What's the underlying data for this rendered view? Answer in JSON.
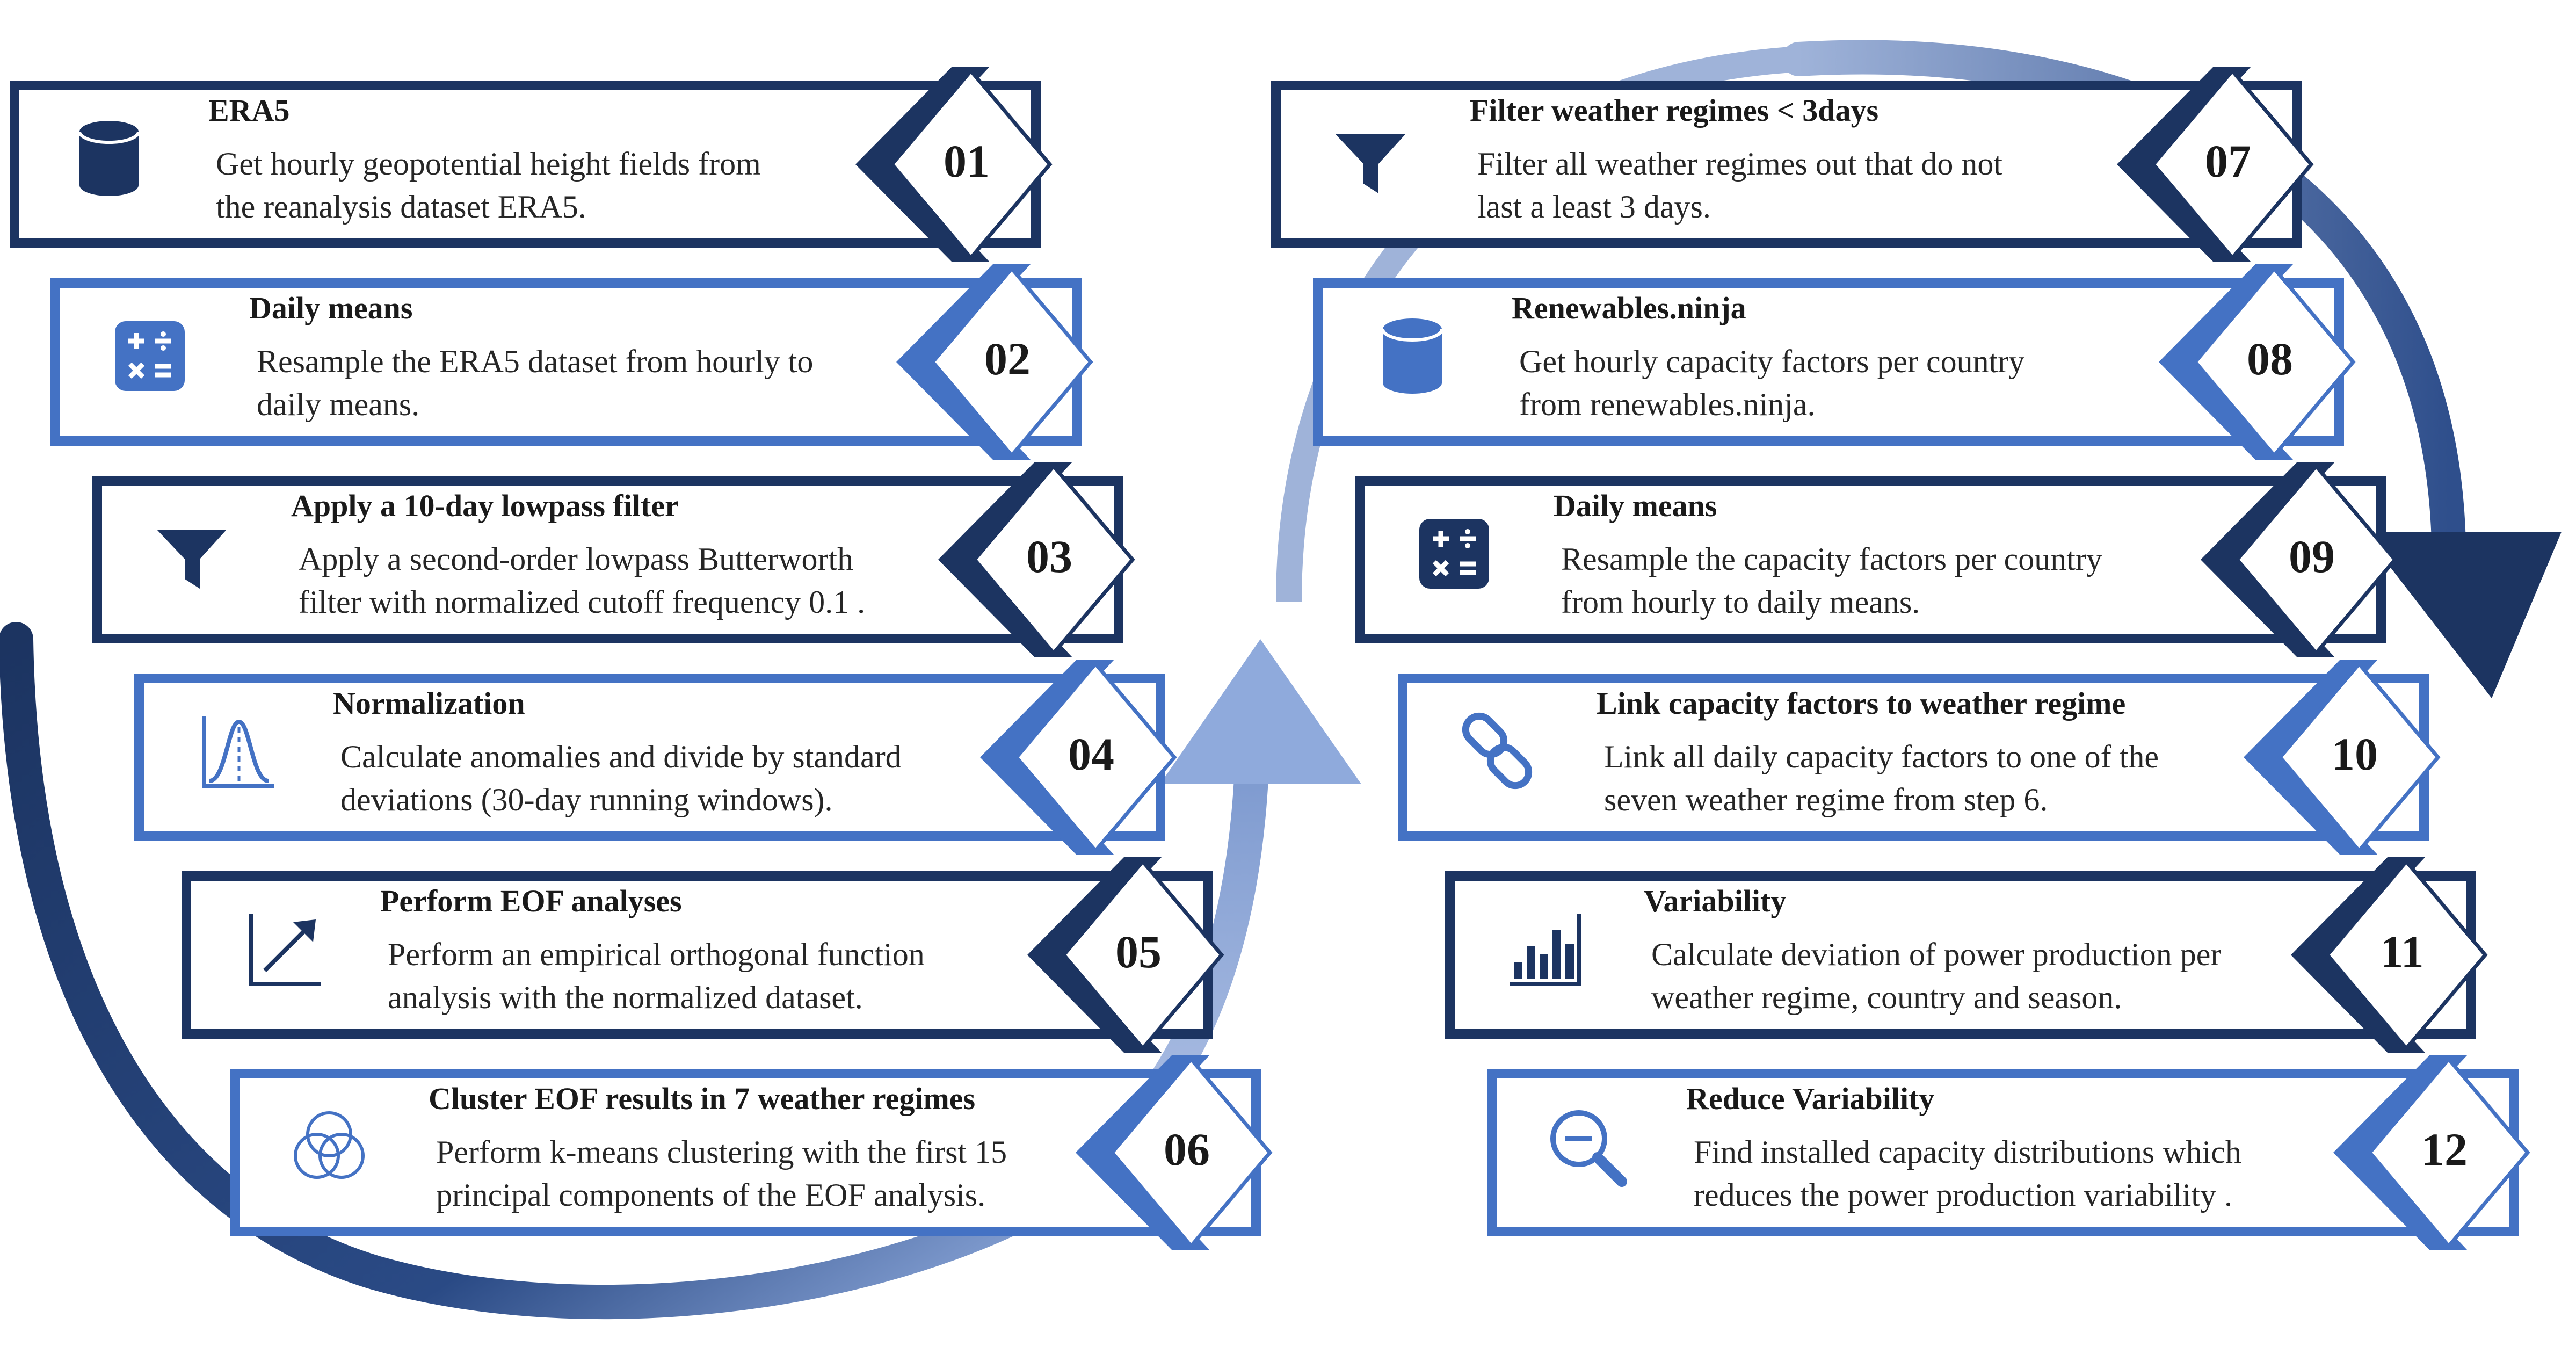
{
  "colors": {
    "dark": "#1c3461",
    "light": "#4472c4",
    "arrow_light": "#8faadc"
  },
  "steps": [
    {
      "num": "01",
      "title": "ERA5",
      "lines": [
        "Get hourly geopotential height fields from",
        "the reanalysis dataset ERA5."
      ],
      "icon": "database-icon",
      "tone": "dark"
    },
    {
      "num": "02",
      "title": "Daily means",
      "lines": [
        "Resample the ERA5 dataset from hourly to",
        "daily means."
      ],
      "icon": "calculator-icon",
      "tone": "light"
    },
    {
      "num": "03",
      "title": "Apply a 10-day lowpass filter",
      "lines": [
        "Apply a second-order lowpass Butterworth",
        "filter with normalized cutoff frequency 0.1 ."
      ],
      "icon": "funnel-icon",
      "tone": "dark"
    },
    {
      "num": "04",
      "title": "Normalization",
      "lines": [
        "Calculate anomalies and divide by standard",
        "deviations (30-day running windows)."
      ],
      "icon": "bell-curve-icon",
      "tone": "light"
    },
    {
      "num": "05",
      "title": "Perform EOF analyses",
      "lines": [
        "Perform an empirical orthogonal function",
        "analysis with the normalized dataset."
      ],
      "icon": "trend-arrow-icon",
      "tone": "dark"
    },
    {
      "num": "06",
      "title": "Cluster EOF results in 7 weather regimes",
      "lines": [
        "Perform k-means clustering with the first 15",
        "principal components of the EOF analysis."
      ],
      "icon": "venn-circles-icon",
      "tone": "light"
    },
    {
      "num": "07",
      "title": "Filter weather regimes <  3days",
      "lines": [
        "Filter all weather regimes out that do not",
        "last a least 3 days."
      ],
      "icon": "funnel-icon",
      "tone": "dark"
    },
    {
      "num": "08",
      "title": "Renewables.ninja",
      "lines": [
        "Get hourly capacity factors per country",
        "from renewables.ninja."
      ],
      "icon": "database-icon",
      "tone": "light"
    },
    {
      "num": "09",
      "title": "Daily means",
      "lines": [
        "Resample the capacity factors per country",
        "from hourly to daily means."
      ],
      "icon": "calculator-icon",
      "tone": "dark"
    },
    {
      "num": "10",
      "title": "Link capacity factors to weather regime",
      "lines": [
        "Link all daily capacity factors to one of the",
        "seven weather regime from step 6."
      ],
      "icon": "chain-link-icon",
      "tone": "light"
    },
    {
      "num": "11",
      "title": "Variability",
      "lines": [
        "Calculate deviation of power production per",
        "weather regime, country and season."
      ],
      "icon": "bar-chart-icon",
      "tone": "dark"
    },
    {
      "num": "12",
      "title": "Reduce Variability",
      "lines": [
        "Find installed capacity distributions which",
        "reduces the power production variability ."
      ],
      "icon": "magnifier-minus-icon",
      "tone": "light"
    }
  ]
}
